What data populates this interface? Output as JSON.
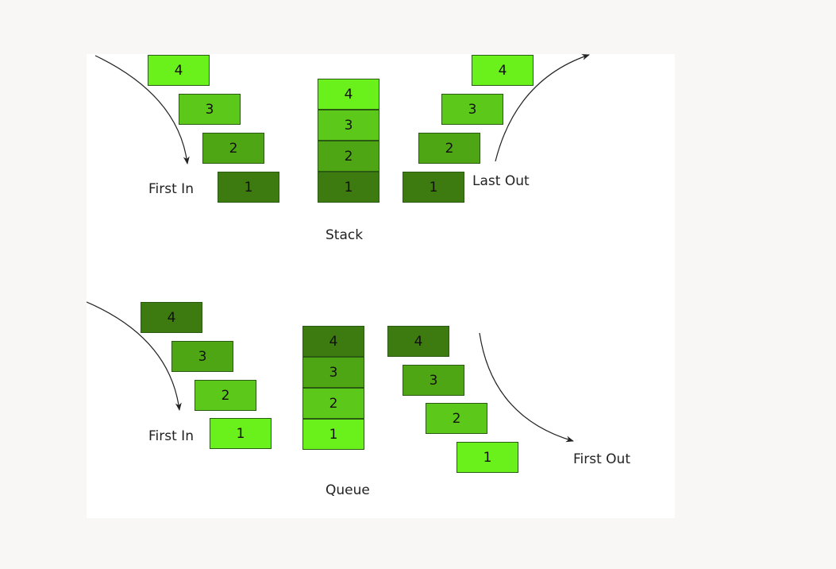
{
  "colors": {
    "level1": "#3d7a0f",
    "level2": "#4fa614",
    "level3": "#5cc81a",
    "level4": "#6af11c",
    "page_background": "#f8f7f6",
    "panel_background": "#ffffff"
  },
  "stack": {
    "title": "Stack",
    "in_label": "First In",
    "out_label": "Last Out",
    "incoming": [
      "4",
      "3",
      "2",
      "1"
    ],
    "column": [
      "4",
      "3",
      "2",
      "1"
    ],
    "outgoing": [
      "4",
      "3",
      "2",
      "1"
    ]
  },
  "queue": {
    "title": "Queue",
    "in_label": "First In",
    "out_label": "First Out",
    "incoming": [
      "4",
      "3",
      "2",
      "1"
    ],
    "column": [
      "4",
      "3",
      "2",
      "1"
    ],
    "outgoing": [
      "4",
      "3",
      "2",
      "1"
    ]
  }
}
